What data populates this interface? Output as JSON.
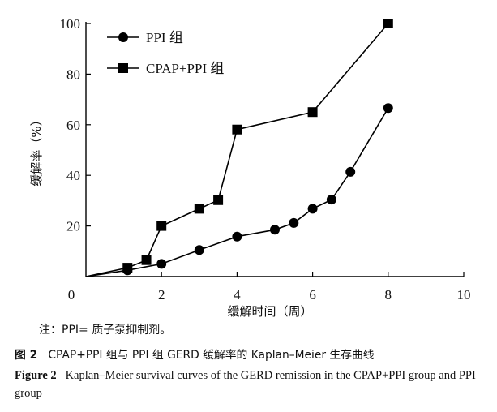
{
  "chart_data": {
    "type": "line",
    "xlabel": "缓解时间（周）",
    "ylabel": "缓解率（%）",
    "xlim": [
      0,
      10
    ],
    "ylim": [
      0,
      100
    ],
    "xticks": [
      0,
      2,
      4,
      6,
      8,
      10
    ],
    "yticks": [
      20,
      40,
      60,
      80,
      100
    ],
    "grid": false,
    "legend_position": "top-left",
    "series": [
      {
        "name": "PPI 组",
        "marker": "circle",
        "color": "#000000",
        "x": [
          0,
          1.1,
          2,
          3,
          4,
          5,
          5.5,
          6,
          6.5,
          7,
          8
        ],
        "y": [
          0,
          2.5,
          5,
          10.5,
          15.8,
          18.5,
          21.2,
          26.8,
          30.4,
          41.4,
          66.6
        ]
      },
      {
        "name": "CPAP+PPI 组",
        "marker": "square",
        "color": "#000000",
        "x": [
          0,
          1.1,
          1.6,
          2,
          3,
          3.5,
          4,
          6,
          8
        ],
        "y": [
          0,
          3.5,
          6.5,
          20,
          26.8,
          30.2,
          58.1,
          65,
          100
        ]
      }
    ]
  },
  "note": "注：PPI= 质子泵抑制剂。",
  "caption_cn": {
    "label": "图 2",
    "text": "CPAP+PPI 组与 PPI 组 GERD 缓解率的 Kaplan–Meier 生存曲线"
  },
  "caption_en": {
    "label": "Figure 2",
    "text": "Kaplan–Meier survival curves of the GERD remission in the CPAP+PPI group and PPI group"
  }
}
